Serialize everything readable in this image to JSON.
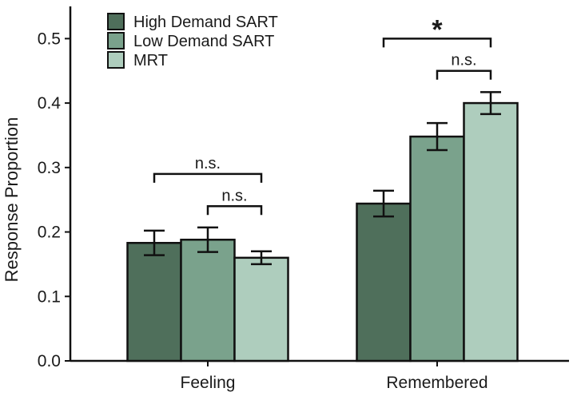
{
  "chart_data": {
    "type": "bar",
    "title": "",
    "xlabel": "",
    "ylabel": "Response Proportion",
    "ylim": [
      0,
      0.55
    ],
    "yticks": [
      "0.0",
      "0.1",
      "0.2",
      "0.3",
      "0.4",
      "0.5"
    ],
    "categories": [
      "Feeling",
      "Remembered"
    ],
    "series": [
      {
        "name": "High Demand SART",
        "color": "#4f6f5b",
        "values": [
          0.183,
          0.244
        ],
        "errors": [
          0.019,
          0.02
        ]
      },
      {
        "name": "Low Demand SART",
        "color": "#7aa28c",
        "values": [
          0.188,
          0.348
        ],
        "errors": [
          0.019,
          0.021
        ]
      },
      {
        "name": "MRT",
        "color": "#aecdbd",
        "values": [
          0.16,
          0.4
        ],
        "errors": [
          0.01,
          0.017
        ]
      }
    ],
    "legend_position": "top-left",
    "grid": false,
    "annotations": [
      {
        "label": "n.s.",
        "category": "Feeling",
        "from_series": 0,
        "to_series": 2,
        "level": 0.29
      },
      {
        "label": "n.s.",
        "category": "Feeling",
        "from_series": 1,
        "to_series": 2,
        "level": 0.24
      },
      {
        "label": "*",
        "category": "Remembered",
        "from_series": 0,
        "to_series": 2,
        "level": 0.5
      },
      {
        "label": "n.s.",
        "category": "Remembered",
        "from_series": 1,
        "to_series": 2,
        "level": 0.45
      }
    ]
  }
}
